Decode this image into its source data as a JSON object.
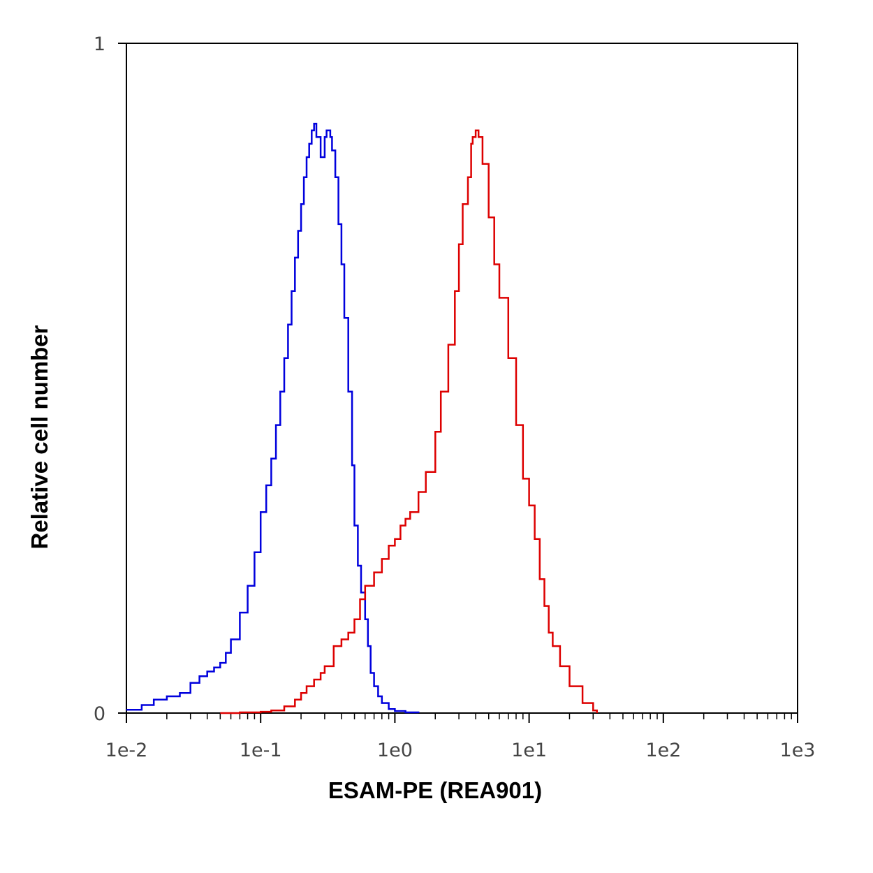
{
  "chart_data": {
    "type": "line",
    "title": "",
    "xlabel": "ESAM-PE (REA901)",
    "ylabel": "Relative cell number",
    "x_scale": "log",
    "xlim": [
      0.01,
      1000
    ],
    "ylim": [
      0,
      1
    ],
    "x_ticks": [
      "1e-2",
      "1e-1",
      "1e0",
      "1e1",
      "1e2",
      "1e3"
    ],
    "y_ticks": [
      "0",
      "1"
    ],
    "grid": false,
    "legend": "none",
    "series": [
      {
        "color": "#0000dd",
        "x": [
          0.01,
          0.013,
          0.016,
          0.02,
          0.025,
          0.03,
          0.035,
          0.04,
          0.045,
          0.05,
          0.055,
          0.06,
          0.07,
          0.08,
          0.09,
          0.1,
          0.11,
          0.12,
          0.13,
          0.14,
          0.15,
          0.16,
          0.17,
          0.18,
          0.19,
          0.2,
          0.21,
          0.22,
          0.23,
          0.24,
          0.25,
          0.26,
          0.28,
          0.3,
          0.31,
          0.32,
          0.33,
          0.34,
          0.36,
          0.38,
          0.4,
          0.42,
          0.45,
          0.48,
          0.5,
          0.53,
          0.56,
          0.6,
          0.63,
          0.66,
          0.7,
          0.75,
          0.8,
          0.9,
          1.0,
          1.2,
          1.5
        ],
        "y": [
          0.005,
          0.012,
          0.02,
          0.025,
          0.03,
          0.045,
          0.055,
          0.062,
          0.068,
          0.075,
          0.09,
          0.11,
          0.15,
          0.19,
          0.24,
          0.3,
          0.34,
          0.38,
          0.43,
          0.48,
          0.53,
          0.58,
          0.63,
          0.68,
          0.72,
          0.76,
          0.8,
          0.83,
          0.85,
          0.87,
          0.88,
          0.86,
          0.83,
          0.86,
          0.87,
          0.87,
          0.86,
          0.84,
          0.8,
          0.73,
          0.67,
          0.59,
          0.48,
          0.37,
          0.28,
          0.22,
          0.18,
          0.14,
          0.1,
          0.06,
          0.04,
          0.025,
          0.015,
          0.006,
          0.003,
          0.001,
          0.0
        ]
      },
      {
        "color": "#dd0000",
        "x": [
          0.05,
          0.07,
          0.1,
          0.12,
          0.15,
          0.18,
          0.2,
          0.22,
          0.25,
          0.28,
          0.3,
          0.35,
          0.4,
          0.45,
          0.5,
          0.55,
          0.6,
          0.7,
          0.8,
          0.9,
          1.0,
          1.1,
          1.2,
          1.3,
          1.5,
          1.7,
          2.0,
          2.2,
          2.5,
          2.8,
          3.0,
          3.2,
          3.5,
          3.7,
          3.8,
          4.0,
          4.2,
          4.5,
          5.0,
          5.5,
          6.0,
          7.0,
          8.0,
          9.0,
          10,
          11,
          12,
          13,
          14,
          15,
          17,
          20,
          25,
          30,
          32
        ],
        "y": [
          0.0,
          0.001,
          0.002,
          0.004,
          0.01,
          0.02,
          0.03,
          0.04,
          0.05,
          0.06,
          0.07,
          0.1,
          0.11,
          0.12,
          0.14,
          0.17,
          0.19,
          0.21,
          0.23,
          0.25,
          0.26,
          0.28,
          0.29,
          0.3,
          0.33,
          0.36,
          0.42,
          0.48,
          0.55,
          0.63,
          0.7,
          0.76,
          0.8,
          0.85,
          0.86,
          0.87,
          0.86,
          0.82,
          0.74,
          0.67,
          0.62,
          0.53,
          0.43,
          0.35,
          0.31,
          0.26,
          0.2,
          0.16,
          0.12,
          0.1,
          0.07,
          0.04,
          0.015,
          0.004,
          0.0
        ]
      }
    ]
  }
}
